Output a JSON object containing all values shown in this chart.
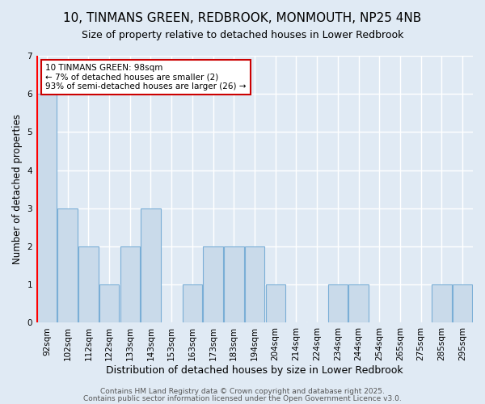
{
  "title": "10, TINMANS GREEN, REDBROOK, MONMOUTH, NP25 4NB",
  "subtitle": "Size of property relative to detached houses in Lower Redbrook",
  "xlabel": "Distribution of detached houses by size in Lower Redbrook",
  "ylabel": "Number of detached properties",
  "bins": [
    "92sqm",
    "102sqm",
    "112sqm",
    "122sqm",
    "133sqm",
    "143sqm",
    "153sqm",
    "163sqm",
    "173sqm",
    "183sqm",
    "194sqm",
    "204sqm",
    "214sqm",
    "224sqm",
    "234sqm",
    "244sqm",
    "254sqm",
    "265sqm",
    "275sqm",
    "285sqm",
    "295sqm"
  ],
  "counts": [
    6,
    3,
    2,
    1,
    2,
    3,
    0,
    1,
    2,
    2,
    2,
    1,
    0,
    0,
    1,
    1,
    0,
    0,
    0,
    1,
    1
  ],
  "bar_color": "#c9daea",
  "bar_edge_color": "#7aaed6",
  "background_color": "#e0eaf4",
  "grid_color": "#ffffff",
  "annotation_text": "10 TINMANS GREEN: 98sqm\n← 7% of detached houses are smaller (2)\n93% of semi-detached houses are larger (26) →",
  "annotation_box_color": "#ffffff",
  "annotation_box_edge": "#cc0000",
  "ylim": [
    0,
    7
  ],
  "yticks": [
    0,
    1,
    2,
    3,
    4,
    5,
    6,
    7
  ],
  "footer1": "Contains HM Land Registry data © Crown copyright and database right 2025.",
  "footer2": "Contains public sector information licensed under the Open Government Licence v3.0.",
  "title_fontsize": 11,
  "subtitle_fontsize": 9,
  "xlabel_fontsize": 9,
  "ylabel_fontsize": 8.5,
  "tick_fontsize": 7.5,
  "footer_fontsize": 6.5,
  "annotation_fontsize": 7.5
}
